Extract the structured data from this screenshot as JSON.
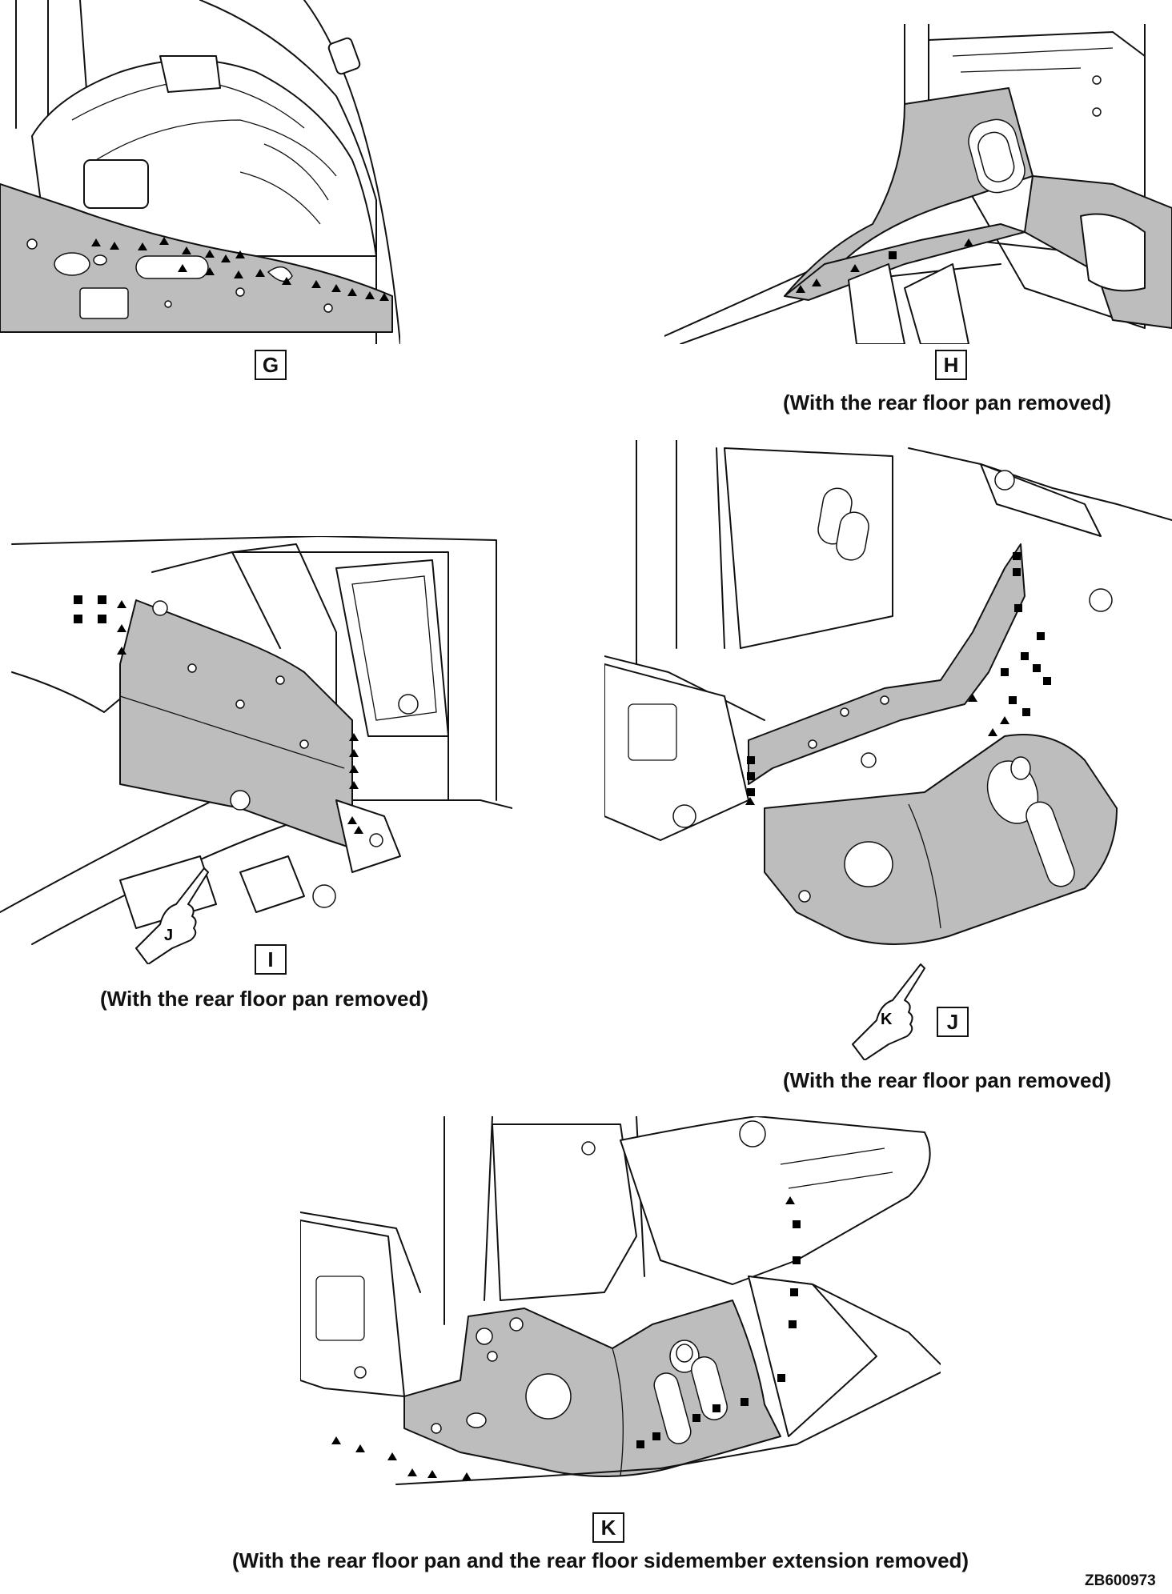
{
  "panels": {
    "G": {
      "label": "G",
      "caption": ""
    },
    "H": {
      "label": "H",
      "caption": "(With the rear floor pan removed)"
    },
    "I": {
      "label": "I",
      "caption": "(With the rear floor pan removed)",
      "pointer": "J"
    },
    "J": {
      "label": "J",
      "caption": "(With the rear floor pan removed)",
      "pointer": "K"
    },
    "K": {
      "label": "K",
      "caption": "(With the rear floor pan and the rear floor sidemember extension removed)"
    }
  },
  "reference_code": "ZB600973",
  "legend_symbols": [
    "triangle-marker",
    "square-marker"
  ],
  "colors": {
    "highlight_panel": "#bdbdbd",
    "outline": "#111111"
  }
}
